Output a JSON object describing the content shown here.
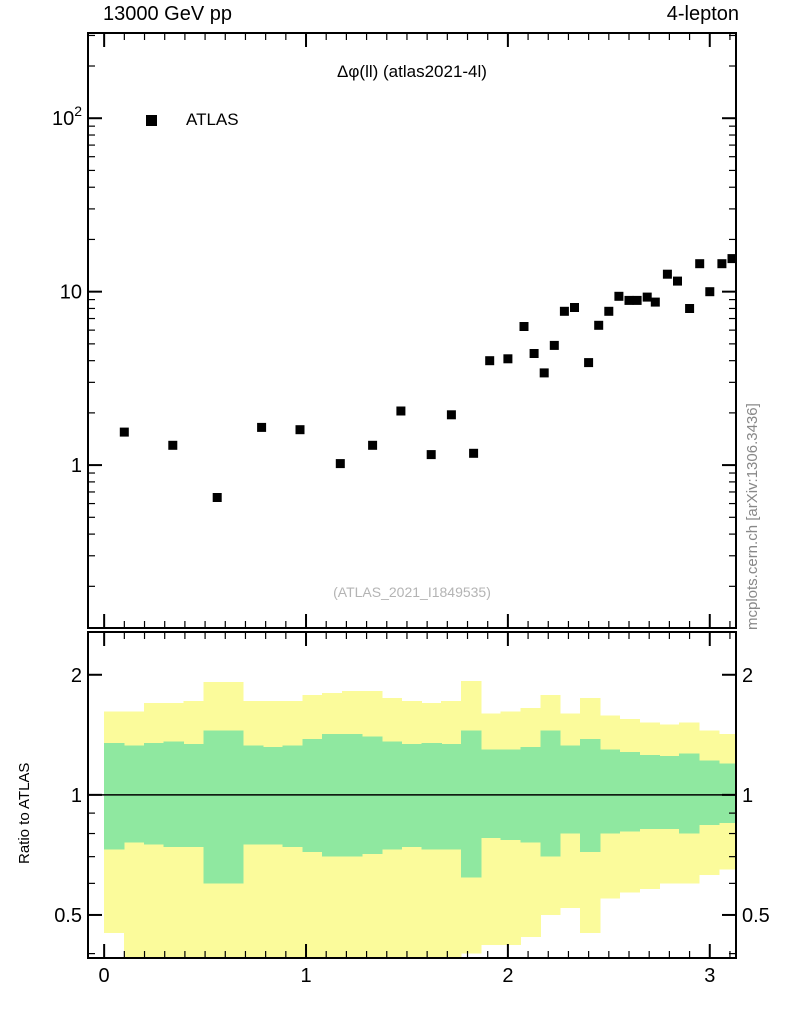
{
  "header": {
    "left": "13000 GeV pp",
    "right": "4-lepton"
  },
  "main_panel": {
    "title": "Δφ(ll) (atlas2021-4l)",
    "legend": [
      {
        "label": "ATLAS",
        "marker": "filled-square",
        "color": "#000000"
      }
    ],
    "watermark": "(ATLAS_2021_I1849535)"
  },
  "ratio_panel": {
    "ylabel": "Ratio to ATLAS"
  },
  "side_label": "mcplots.cern.ch [arXiv:1306.3436]",
  "chart_data": [
    {
      "type": "scatter",
      "title": "Δφ(ll) (atlas2021-4l)",
      "ylog": true,
      "xlim": [
        -0.08,
        3.13
      ],
      "ylim": [
        0.115,
        310
      ],
      "xticks": [
        0,
        1,
        2,
        3
      ],
      "ytick_labels": [
        {
          "v": 1,
          "t": "1"
        },
        {
          "v": 10,
          "t": "10"
        },
        {
          "v": 100,
          "t": "10",
          "sup": "2"
        }
      ],
      "series": [
        {
          "name": "ATLAS",
          "marker": "filled-square",
          "color": "#000000",
          "x": [
            0.1,
            0.34,
            0.56,
            0.78,
            0.97,
            1.17,
            1.33,
            1.47,
            1.62,
            1.72,
            1.83,
            1.91,
            2.0,
            2.08,
            2.13,
            2.18,
            2.23,
            2.28,
            2.33,
            2.4,
            2.45,
            2.5,
            2.55,
            2.6,
            2.64,
            2.69,
            2.73,
            2.79,
            2.84,
            2.9,
            2.95,
            3.0,
            3.06,
            3.11
          ],
          "y": [
            1.55,
            1.3,
            0.65,
            1.65,
            1.6,
            1.02,
            1.3,
            2.05,
            1.15,
            1.95,
            1.17,
            4.0,
            4.1,
            6.3,
            4.4,
            3.4,
            4.9,
            7.7,
            8.1,
            3.9,
            6.4,
            7.7,
            9.4,
            8.9,
            8.9,
            9.3,
            8.7,
            12.6,
            11.5,
            8.0,
            14.5,
            10.0,
            14.5,
            15.5
          ]
        }
      ]
    },
    {
      "type": "area",
      "name": "ratio-panel",
      "ylabel": "Ratio to ATLAS",
      "ylog": true,
      "ylim": [
        0.39,
        2.56
      ],
      "ytick_labels": [
        {
          "v": 0.5,
          "t": "0.5"
        },
        {
          "v": 1,
          "t": "1"
        },
        {
          "v": 2,
          "t": "2"
        }
      ],
      "yticks_minor": [
        0.4,
        0.6,
        0.7,
        0.8,
        0.9
      ],
      "reference_line": 1,
      "bands": {
        "bin_start": 0,
        "bin_width": 0.0982,
        "colors": {
          "outer": "#fbfb9b",
          "inner": "#8fe8a0"
        },
        "yellow_lo": [
          0.45,
          0.37,
          0.35,
          0.33,
          0.35,
          0.35,
          0.35,
          0.35,
          0.36,
          0.35,
          0.33,
          0.34,
          0.33,
          0.34,
          0.35,
          0.36,
          0.35,
          0.37,
          0.4,
          0.42,
          0.42,
          0.44,
          0.5,
          0.52,
          0.45,
          0.55,
          0.57,
          0.58,
          0.6,
          0.6,
          0.63,
          0.65
        ],
        "yellow_hi": [
          1.62,
          1.62,
          1.7,
          1.7,
          1.72,
          1.92,
          1.92,
          1.72,
          1.72,
          1.72,
          1.78,
          1.8,
          1.82,
          1.82,
          1.75,
          1.72,
          1.7,
          1.72,
          1.93,
          1.6,
          1.62,
          1.65,
          1.78,
          1.6,
          1.75,
          1.58,
          1.55,
          1.52,
          1.5,
          1.52,
          1.45,
          1.42
        ],
        "green_lo": [
          0.73,
          0.76,
          0.75,
          0.74,
          0.74,
          0.6,
          0.6,
          0.75,
          0.75,
          0.74,
          0.72,
          0.7,
          0.7,
          0.71,
          0.73,
          0.74,
          0.73,
          0.73,
          0.62,
          0.78,
          0.77,
          0.76,
          0.7,
          0.8,
          0.72,
          0.8,
          0.81,
          0.82,
          0.82,
          0.8,
          0.84,
          0.85
        ],
        "green_hi": [
          1.35,
          1.33,
          1.35,
          1.36,
          1.34,
          1.45,
          1.45,
          1.33,
          1.32,
          1.33,
          1.38,
          1.42,
          1.42,
          1.4,
          1.36,
          1.34,
          1.35,
          1.34,
          1.45,
          1.3,
          1.3,
          1.32,
          1.45,
          1.33,
          1.38,
          1.3,
          1.28,
          1.26,
          1.25,
          1.27,
          1.22,
          1.2
        ]
      }
    }
  ]
}
